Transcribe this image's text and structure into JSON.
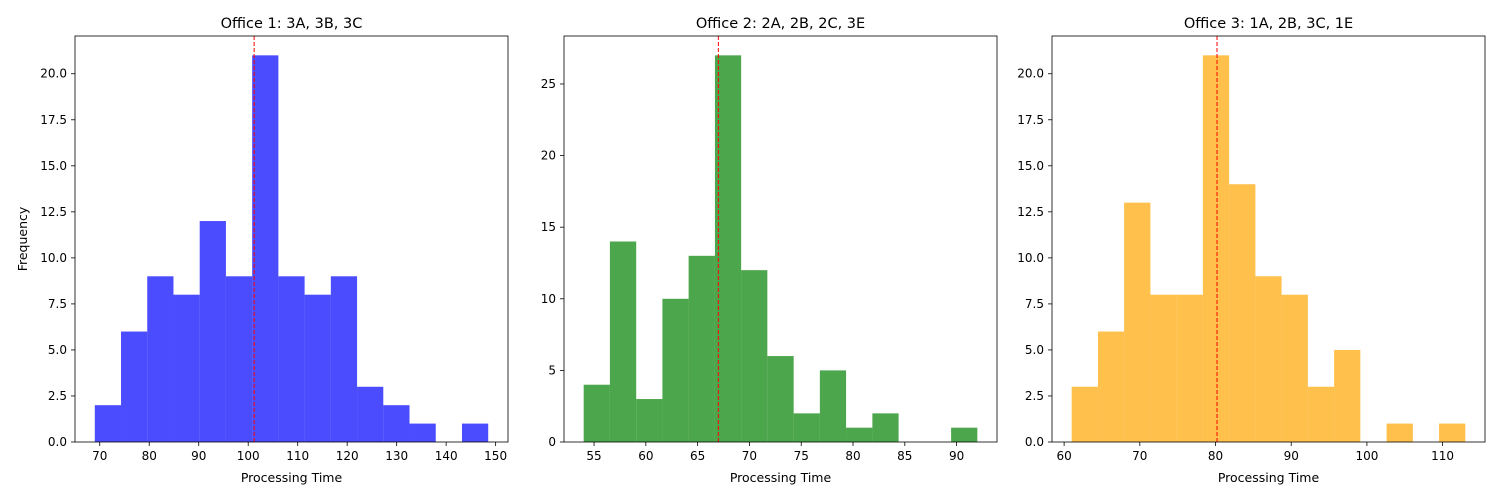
{
  "chart_data": [
    {
      "type": "histogram",
      "title": "Office 1: 3A, 3B, 3C",
      "xlabel": "Processing Time",
      "ylabel": "Frequency",
      "color": "#0000ff",
      "bin_edges": [
        69.0,
        74.3,
        79.6,
        84.9,
        90.2,
        95.5,
        100.8,
        106.1,
        111.4,
        116.7,
        122.0,
        127.3,
        132.6,
        137.9,
        143.2,
        148.5
      ],
      "counts": [
        2,
        6,
        9,
        8,
        12,
        9,
        21,
        9,
        8,
        9,
        3,
        2,
        1,
        0,
        1
      ],
      "mean": 101.2,
      "xlim": [
        65.0,
        152.5
      ],
      "ylim": [
        0,
        22.05
      ],
      "xticks": [
        70,
        80,
        90,
        100,
        110,
        120,
        130,
        140,
        150
      ],
      "yticks": [
        0.0,
        2.5,
        5.0,
        7.5,
        10.0,
        12.5,
        15.0,
        17.5,
        20.0
      ]
    },
    {
      "type": "histogram",
      "title": "Office 2: 2A, 2B, 2C, 3E",
      "xlabel": "Processing Time",
      "ylabel": "",
      "color": "#008000",
      "bin_edges": [
        54.0,
        56.53,
        59.07,
        61.6,
        64.13,
        66.67,
        69.2,
        71.73,
        74.27,
        76.8,
        79.33,
        81.87,
        84.4,
        86.93,
        89.47,
        92.0
      ],
      "counts": [
        4,
        14,
        3,
        10,
        13,
        27,
        12,
        6,
        2,
        5,
        1,
        2,
        0,
        0,
        1
      ],
      "mean": 67.0,
      "xlim": [
        52.1,
        93.9
      ],
      "ylim": [
        0,
        28.35
      ],
      "xticks": [
        55,
        60,
        65,
        70,
        75,
        80,
        85,
        90
      ],
      "yticks": [
        0,
        5,
        10,
        15,
        20,
        25
      ]
    },
    {
      "type": "histogram",
      "title": "Office 3: 1A, 2B, 3C, 1E",
      "xlabel": "Processing Time",
      "ylabel": "",
      "color": "#ffa500",
      "bin_edges": [
        61.0,
        64.47,
        67.93,
        71.4,
        74.87,
        78.33,
        81.8,
        85.27,
        88.73,
        92.2,
        95.67,
        99.13,
        102.6,
        106.07,
        109.53,
        113.0
      ],
      "counts": [
        3,
        6,
        13,
        8,
        8,
        21,
        14,
        9,
        8,
        3,
        5,
        0,
        1,
        0,
        1
      ],
      "mean": 80.2,
      "xlim": [
        58.4,
        115.6
      ],
      "ylim": [
        0,
        22.05
      ],
      "xticks": [
        60,
        70,
        80,
        90,
        100,
        110
      ],
      "yticks": [
        0.0,
        2.5,
        5.0,
        7.5,
        10.0,
        12.5,
        15.0,
        17.5,
        20.0
      ]
    }
  ]
}
